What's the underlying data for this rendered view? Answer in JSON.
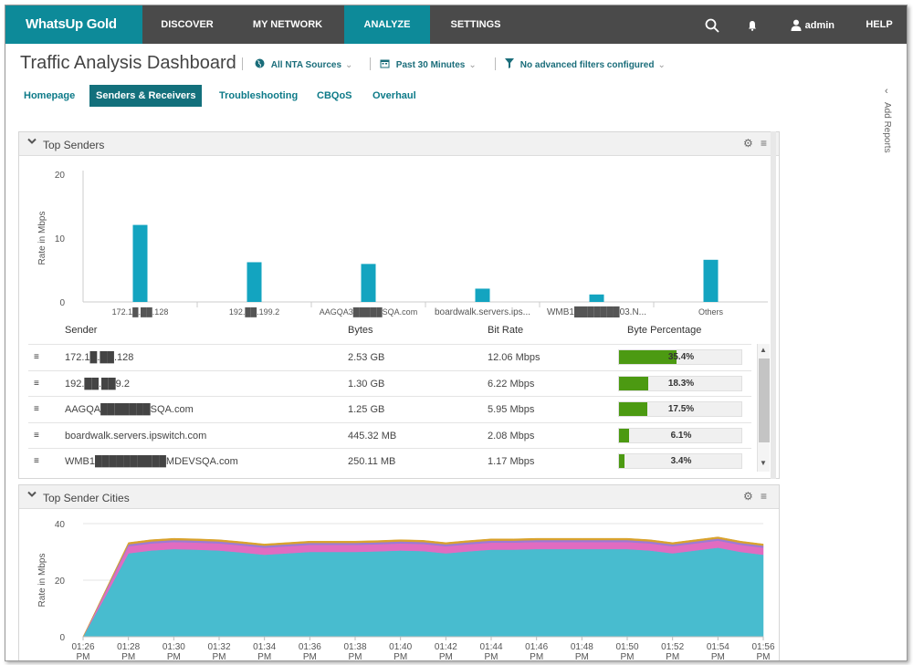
{
  "nav": {
    "logo": "WhatsUp Gold",
    "items": [
      "DISCOVER",
      "MY NETWORK",
      "ANALYZE",
      "SETTINGS"
    ],
    "active": "ANALYZE",
    "user": "admin",
    "help": "HELP",
    "icons": [
      "search-icon",
      "bell-icon",
      "user-icon"
    ]
  },
  "header": {
    "title": "Traffic Analysis Dashboard",
    "sources": "All NTA Sources",
    "time": "Past 30 Minutes",
    "filters": "No advanced filters configured"
  },
  "tabs": [
    "Homepage",
    "Senders & Receivers",
    "Troubleshooting",
    "CBQoS",
    "Overhaul"
  ],
  "active_tab": "Senders & Receivers",
  "side": {
    "add_reports": "Add Reports"
  },
  "top_senders": {
    "title": "Top Senders",
    "columns": [
      "Sender",
      "Bytes",
      "Bit Rate",
      "Byte Percentage"
    ],
    "rows": [
      {
        "sender": "172.1█.██.128",
        "bytes": "2.53 GB",
        "rate": "12.06 Mbps",
        "pct": 35.4,
        "pct_label": "35.4%"
      },
      {
        "sender": "192.██.██9.2",
        "bytes": "1.30 GB",
        "rate": "6.22 Mbps",
        "pct": 18.3,
        "pct_label": "18.3%"
      },
      {
        "sender": "AAGQA███████SQA.com",
        "bytes": "1.25 GB",
        "rate": "5.95 Mbps",
        "pct": 17.5,
        "pct_label": "17.5%"
      },
      {
        "sender": "boardwalk.servers.ipswitch.com",
        "bytes": "445.32 MB",
        "rate": "2.08 Mbps",
        "pct": 6.1,
        "pct_label": "6.1%"
      },
      {
        "sender": "WMB1██████████MDEVSQA.com",
        "bytes": "250.11 MB",
        "rate": "1.17 Mbps",
        "pct": 3.4,
        "pct_label": "3.4%"
      }
    ]
  },
  "top_sender_cities": {
    "title": "Top Sender Cities"
  },
  "chart_data": [
    {
      "type": "bar",
      "ylabel": "Rate in Mbps",
      "ylim": [
        0,
        20
      ],
      "yticks": [
        0,
        10,
        20
      ],
      "categories": [
        "172.1█.██.128",
        "192.██.199.2",
        "AAGQA3█████SQA.com",
        "boardwalk.servers.ips...",
        "WMB1███████03.N...",
        "Others"
      ],
      "values": [
        12.06,
        6.22,
        5.95,
        2.08,
        1.17,
        6.6
      ],
      "color": "#13a4c0",
      "grid": false
    },
    {
      "type": "area",
      "ylabel": "Rate in Mbps",
      "ylim": [
        0,
        40
      ],
      "yticks": [
        0,
        20,
        40
      ],
      "x": [
        "01:26 PM",
        "01:27 PM",
        "01:28 PM",
        "01:29 PM",
        "01:30 PM",
        "01:31 PM",
        "01:32 PM",
        "01:33 PM",
        "01:34 PM",
        "01:35 PM",
        "01:36 PM",
        "01:37 PM",
        "01:38 PM",
        "01:39 PM",
        "01:40 PM",
        "01:41 PM",
        "01:42 PM",
        "01:43 PM",
        "01:44 PM",
        "01:45 PM",
        "01:46 PM",
        "01:47 PM",
        "01:48 PM",
        "01:49 PM",
        "01:50 PM",
        "01:51 PM",
        "01:52 PM",
        "01:53 PM",
        "01:54 PM",
        "01:55 PM",
        "01:56 PM"
      ],
      "xtick_labels": [
        "01:26 PM",
        "01:28 PM",
        "01:30 PM",
        "01:32 PM",
        "01:34 PM",
        "01:36 PM",
        "01:38 PM",
        "01:40 PM",
        "01:42 PM",
        "01:44 PM",
        "01:46 PM",
        "01:48 PM",
        "01:50 PM",
        "01:52 PM",
        "01:54 PM",
        "01:56 PM"
      ],
      "series": [
        {
          "color": "#48bccf",
          "values": [
            0,
            14.5,
            29.5,
            30.5,
            31,
            30.8,
            30.5,
            29.8,
            29,
            29.5,
            30,
            30,
            30,
            30.2,
            30.5,
            30.3,
            29.5,
            30.2,
            30.8,
            30.8,
            31,
            31,
            31,
            31,
            31,
            30.5,
            29.5,
            30.5,
            31.5,
            30,
            29
          ]
        },
        {
          "color": "#e06cc1",
          "values": [
            0,
            1.5,
            2.5,
            2.5,
            2.5,
            2.5,
            2.5,
            2.5,
            2.5,
            2.5,
            2.5,
            2.5,
            2.5,
            2.5,
            2.5,
            2.5,
            2.5,
            2.5,
            2.5,
            2.5,
            2.5,
            2.5,
            2.5,
            2.5,
            2.5,
            2.5,
            2.5,
            2.5,
            2.5,
            2.5,
            2.5
          ]
        },
        {
          "color": "#9b7bd4",
          "values": [
            0,
            0.4,
            0.7,
            0.7,
            0.7,
            0.7,
            0.7,
            0.7,
            0.7,
            0.7,
            0.7,
            0.7,
            0.7,
            0.7,
            0.7,
            0.7,
            0.7,
            0.7,
            0.7,
            0.7,
            0.7,
            0.7,
            0.7,
            0.7,
            0.7,
            0.7,
            0.7,
            0.7,
            0.7,
            0.7,
            0.7
          ]
        },
        {
          "color": "#d9a22c",
          "values": [
            0,
            0.3,
            0.6,
            0.6,
            0.6,
            0.6,
            0.6,
            0.6,
            0.6,
            0.6,
            0.6,
            0.6,
            0.6,
            0.6,
            0.6,
            0.6,
            0.6,
            0.6,
            0.6,
            0.6,
            0.6,
            0.6,
            0.6,
            0.6,
            0.6,
            0.6,
            0.6,
            0.6,
            0.6,
            0.6,
            0.6
          ]
        }
      ]
    }
  ]
}
